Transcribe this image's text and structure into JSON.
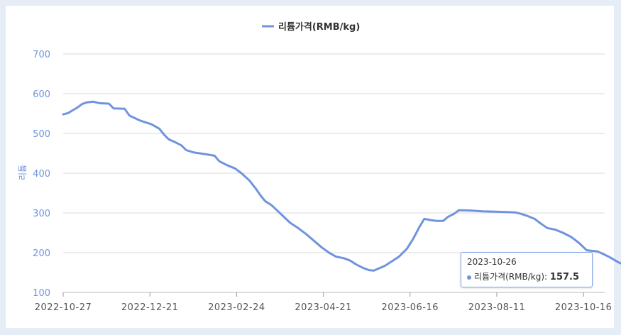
{
  "chart_data": {
    "type": "line",
    "legend_position": "top",
    "ylabel": "리튬",
    "ylim": [
      100,
      700
    ],
    "yticks": [
      "100",
      "200",
      "300",
      "400",
      "500",
      "600",
      "700"
    ],
    "xtick_labels": [
      "2022-10-27",
      "2022-12-21",
      "2023-02-24",
      "2023-04-21",
      "2023-06-16",
      "2023-08-11",
      "2023-10-16"
    ],
    "grid": true,
    "colors": {
      "series": "#6f94dd",
      "grid": "#d9d9d9",
      "axis_text": "#6f94dd"
    },
    "series": [
      {
        "name": "리튬가격(RMB/kg)",
        "points": [
          [
            "2022-10-27",
            548
          ],
          [
            "2022-10-30",
            551
          ],
          [
            "2022-11-02",
            558
          ],
          [
            "2022-11-05",
            565
          ],
          [
            "2022-11-08",
            574
          ],
          [
            "2022-11-11",
            578
          ],
          [
            "2022-11-15",
            580
          ],
          [
            "2022-11-19",
            576
          ],
          [
            "2022-11-25",
            575
          ],
          [
            "2022-11-28",
            563
          ],
          [
            "2022-12-05",
            562
          ],
          [
            "2022-12-08",
            545
          ],
          [
            "2022-12-15",
            532
          ],
          [
            "2022-12-22",
            523
          ],
          [
            "2022-12-27",
            512
          ],
          [
            "2022-12-30",
            497
          ],
          [
            "2023-01-02",
            485
          ],
          [
            "2023-01-06",
            478
          ],
          [
            "2023-01-10",
            470
          ],
          [
            "2023-01-13",
            458
          ],
          [
            "2023-01-18",
            452
          ],
          [
            "2023-01-25",
            448
          ],
          [
            "2023-01-31",
            444
          ],
          [
            "2023-02-03",
            430
          ],
          [
            "2023-02-08",
            420
          ],
          [
            "2023-02-13",
            412
          ],
          [
            "2023-02-17",
            400
          ],
          [
            "2023-02-22",
            382
          ],
          [
            "2023-02-26",
            362
          ],
          [
            "2023-03-01",
            345
          ],
          [
            "2023-03-04",
            330
          ],
          [
            "2023-03-08",
            320
          ],
          [
            "2023-03-12",
            305
          ],
          [
            "2023-03-16",
            290
          ],
          [
            "2023-03-20",
            275
          ],
          [
            "2023-03-25",
            262
          ],
          [
            "2023-03-30",
            247
          ],
          [
            "2023-04-04",
            230
          ],
          [
            "2023-04-09",
            213
          ],
          [
            "2023-04-14",
            199
          ],
          [
            "2023-04-18",
            190
          ],
          [
            "2023-04-23",
            186
          ],
          [
            "2023-04-27",
            180
          ],
          [
            "2023-05-01",
            170
          ],
          [
            "2023-05-05",
            162
          ],
          [
            "2023-05-09",
            156
          ],
          [
            "2023-05-12",
            155
          ],
          [
            "2023-05-15",
            160
          ],
          [
            "2023-05-19",
            167
          ],
          [
            "2023-05-23",
            177
          ],
          [
            "2023-05-28",
            190
          ],
          [
            "2023-06-02",
            210
          ],
          [
            "2023-06-06",
            235
          ],
          [
            "2023-06-10",
            265
          ],
          [
            "2023-06-13",
            285
          ],
          [
            "2023-06-17",
            282
          ],
          [
            "2023-06-21",
            280
          ],
          [
            "2023-06-25",
            280
          ],
          [
            "2023-06-28",
            290
          ],
          [
            "2023-07-02",
            298
          ],
          [
            "2023-07-05",
            307
          ],
          [
            "2023-07-12",
            306
          ],
          [
            "2023-07-20",
            304
          ],
          [
            "2023-07-28",
            303
          ],
          [
            "2023-08-05",
            302
          ],
          [
            "2023-08-10",
            301
          ],
          [
            "2023-08-13",
            298
          ],
          [
            "2023-08-17",
            293
          ],
          [
            "2023-08-22",
            285
          ],
          [
            "2023-08-26",
            273
          ],
          [
            "2023-08-30",
            262
          ],
          [
            "2023-09-04",
            258
          ],
          [
            "2023-09-09",
            250
          ],
          [
            "2023-09-14",
            240
          ],
          [
            "2023-09-19",
            225
          ],
          [
            "2023-09-24",
            206
          ],
          [
            "2023-10-01",
            203
          ],
          [
            "2023-10-08",
            190
          ],
          [
            "2023-10-14",
            176
          ],
          [
            "2023-10-20",
            165
          ],
          [
            "2023-10-26",
            157.5
          ]
        ]
      }
    ],
    "tooltip": {
      "date": "2023-10-26",
      "label": "리튬가격(RMB/kg): ",
      "value": "157.5"
    }
  }
}
